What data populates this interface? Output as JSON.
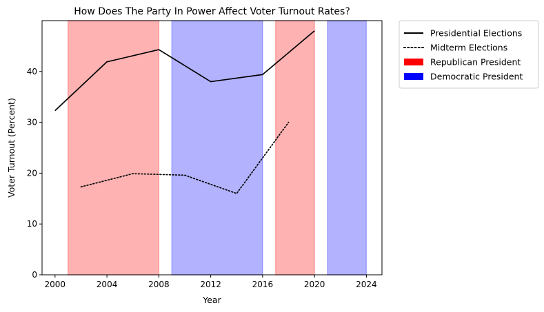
{
  "chart_data": {
    "type": "line",
    "title": "How Does The Party In Power Affect Voter Turnout Rates?",
    "xlabel": "Year",
    "ylabel": "Voter Turnout (Percent)",
    "xlim": [
      1999,
      2025.2
    ],
    "ylim": [
      0,
      50
    ],
    "xticks": [
      2000,
      2004,
      2008,
      2012,
      2016,
      2020,
      2024
    ],
    "yticks": [
      0,
      10,
      20,
      30,
      40
    ],
    "grid": false,
    "legend_position": "outside-top-right",
    "series": [
      {
        "name": "Presidential Elections",
        "style": "solid",
        "color": "#000000",
        "points": [
          [
            2000,
            32.3
          ],
          [
            2004,
            41.9
          ],
          [
            2008,
            44.3
          ],
          [
            2012,
            38.0
          ],
          [
            2016,
            39.4
          ],
          [
            2020,
            48.0
          ]
        ]
      },
      {
        "name": "Midterm Elections",
        "style": "dotted",
        "color": "#000000",
        "points": [
          [
            2002,
            17.3
          ],
          [
            2006,
            19.9
          ],
          [
            2010,
            19.6
          ],
          [
            2014,
            16.0
          ],
          [
            2018,
            30.0
          ]
        ]
      }
    ],
    "shaded_regions": [
      {
        "party": "Republican President",
        "start": 2001,
        "end": 2008
      },
      {
        "party": "Democratic President",
        "start": 2009,
        "end": 2016
      },
      {
        "party": "Republican President",
        "start": 2017,
        "end": 2020
      },
      {
        "party": "Democratic President",
        "start": 2021,
        "end": 2024
      }
    ],
    "legend": [
      {
        "label": "Presidential Elections",
        "kind": "line-solid",
        "color": "#000000"
      },
      {
        "label": "Midterm Elections",
        "kind": "line-dotted",
        "color": "#000000"
      },
      {
        "label": "Republican President",
        "kind": "patch",
        "color": "#ff0000"
      },
      {
        "label": "Democratic President",
        "kind": "patch",
        "color": "#0000ff"
      }
    ],
    "colors": {
      "republican_fill": "#ff0000",
      "democratic_fill": "#0000ff",
      "region_opacity": 0.3
    }
  }
}
